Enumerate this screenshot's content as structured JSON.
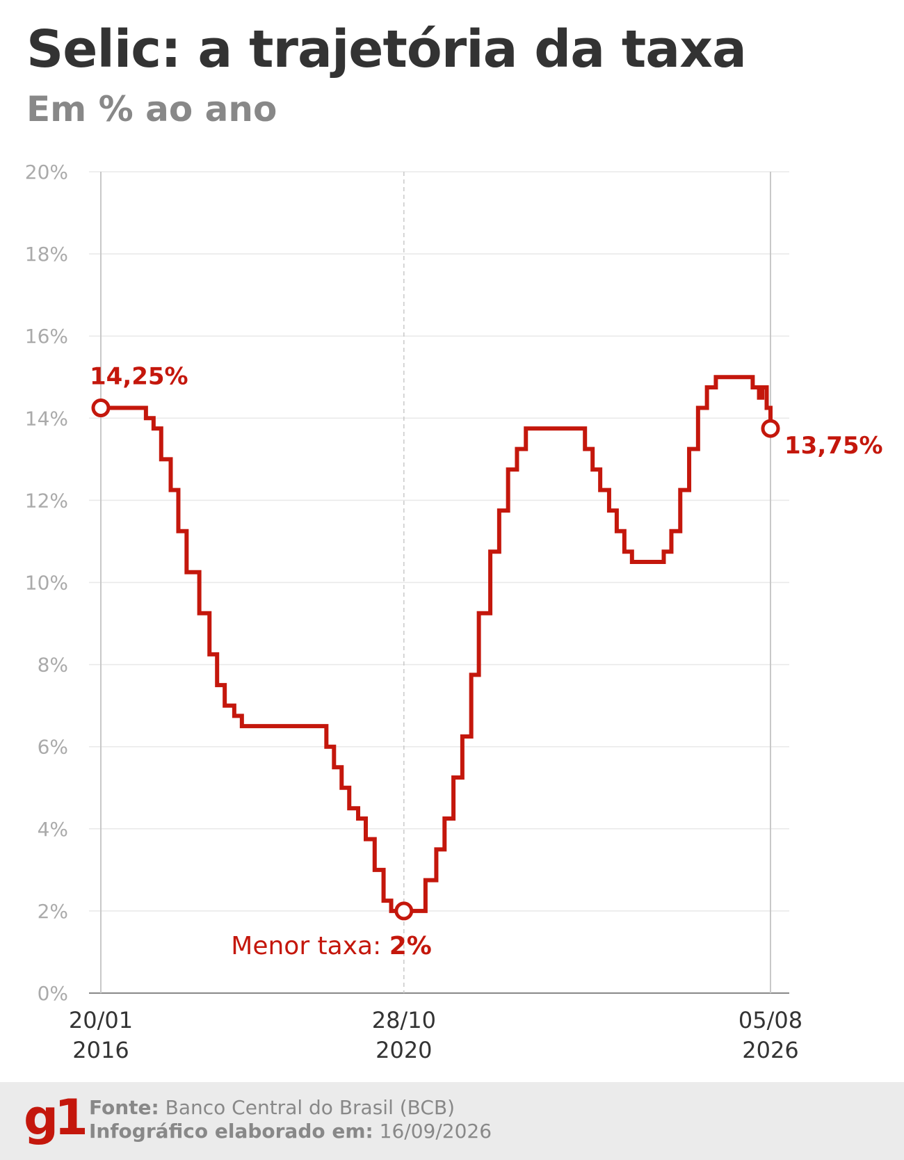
{
  "header": {
    "title": "Selic: a trajetória da taxa",
    "subtitle": "Em % ao ano"
  },
  "footer": {
    "logo": "g1",
    "source_label": "Fonte:",
    "source_value": "Banco Central do Brasil (BCB)",
    "date_label": "Infográfico elaborado em:",
    "date_value": "16/09/2026"
  },
  "colors": {
    "line": "#c4170c",
    "grid": "#e8e8e8",
    "tick": "#aaaaaa",
    "axis": "#888888"
  },
  "chart_data": {
    "type": "line",
    "step": true,
    "ylim": [
      0,
      20
    ],
    "xlim": [
      2016.05,
      2026.59
    ],
    "grid": true,
    "y_ticks": [
      0,
      2,
      4,
      6,
      8,
      10,
      12,
      14,
      16,
      18,
      20
    ],
    "y_tick_labels": [
      "0%",
      "2%",
      "4%",
      "6%",
      "8%",
      "10%",
      "12%",
      "14%",
      "16%",
      "18%",
      "20%"
    ],
    "x_ticks": [
      {
        "x": 2016.05,
        "line1": "20/01",
        "line2": "2016",
        "style": "solid"
      },
      {
        "x": 2020.82,
        "line1": "28/10",
        "line2": "2020",
        "style": "dashed"
      },
      {
        "x": 2026.59,
        "line1": "05/08",
        "line2": "2026",
        "style": "solid"
      }
    ],
    "series": [
      {
        "name": "",
        "points": [
          [
            2016.05,
            14.25
          ],
          [
            2016.76,
            14.0
          ],
          [
            2016.88,
            13.75
          ],
          [
            2017.0,
            13.0
          ],
          [
            2017.15,
            12.25
          ],
          [
            2017.27,
            11.25
          ],
          [
            2017.4,
            10.25
          ],
          [
            2017.6,
            9.25
          ],
          [
            2017.76,
            8.25
          ],
          [
            2017.88,
            7.5
          ],
          [
            2018.0,
            7.0
          ],
          [
            2018.15,
            6.75
          ],
          [
            2018.27,
            6.5
          ],
          [
            2019.6,
            6.0
          ],
          [
            2019.72,
            5.5
          ],
          [
            2019.84,
            5.0
          ],
          [
            2019.96,
            4.5
          ],
          [
            2020.1,
            4.25
          ],
          [
            2020.22,
            3.75
          ],
          [
            2020.36,
            3.0
          ],
          [
            2020.5,
            2.25
          ],
          [
            2020.62,
            2.0
          ],
          [
            2021.16,
            2.75
          ],
          [
            2021.33,
            3.5
          ],
          [
            2021.46,
            4.25
          ],
          [
            2021.6,
            5.25
          ],
          [
            2021.74,
            6.25
          ],
          [
            2021.88,
            7.75
          ],
          [
            2022.0,
            9.25
          ],
          [
            2022.18,
            10.75
          ],
          [
            2022.32,
            11.75
          ],
          [
            2022.46,
            12.75
          ],
          [
            2022.6,
            13.25
          ],
          [
            2022.74,
            13.75
          ],
          [
            2023.67,
            13.25
          ],
          [
            2023.79,
            12.75
          ],
          [
            2023.91,
            12.25
          ],
          [
            2024.05,
            11.75
          ],
          [
            2024.17,
            11.25
          ],
          [
            2024.29,
            10.75
          ],
          [
            2024.41,
            10.5
          ],
          [
            2024.91,
            10.75
          ],
          [
            2025.03,
            11.25
          ],
          [
            2025.17,
            12.25
          ],
          [
            2025.31,
            13.25
          ],
          [
            2025.45,
            14.25
          ],
          [
            2025.59,
            14.75
          ],
          [
            2025.73,
            15.0
          ],
          [
            2026.46,
            14.75
          ],
          [
            2026.31,
            14.75
          ],
          [
            2026.41,
            14.5
          ],
          [
            2026.53,
            14.25
          ],
          [
            2026.59,
            14.0
          ],
          [
            2026.59,
            13.75
          ]
        ]
      }
    ],
    "annotations": [
      {
        "x": 2016.05,
        "y": 14.25,
        "text": "14,25%",
        "position": "above"
      },
      {
        "x": 2020.82,
        "y": 2.0,
        "prefix": "Menor taxa: ",
        "text": "2%",
        "position": "below"
      },
      {
        "x": 2026.59,
        "y": 13.75,
        "text": "13,75%",
        "position": "right"
      }
    ]
  }
}
